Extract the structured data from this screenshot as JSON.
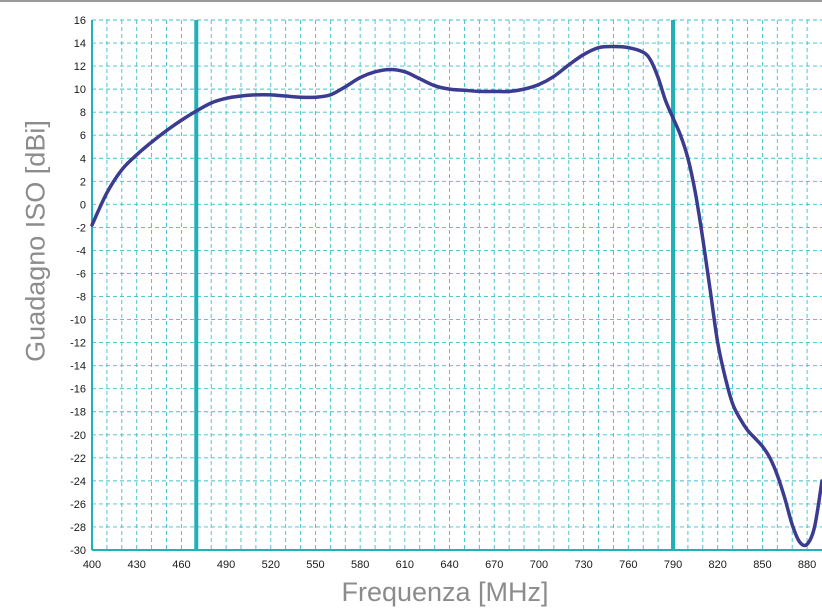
{
  "chart_data": {
    "type": "line",
    "xlabel": "Frequenza [MHz]",
    "ylabel": "Guadagno ISO [dBi]",
    "xlim": [
      400,
      880
    ],
    "x_axis_end": 890,
    "ylim": [
      -30,
      16
    ],
    "x_ticks": [
      400,
      430,
      460,
      490,
      520,
      550,
      580,
      610,
      640,
      670,
      700,
      730,
      760,
      790,
      820,
      850,
      880
    ],
    "x_minor_step": 10,
    "y_ticks": [
      16,
      14,
      12,
      10,
      8,
      6,
      4,
      2,
      0,
      -2,
      -4,
      -6,
      -8,
      -10,
      -12,
      -14,
      -16,
      -18,
      -20,
      -22,
      -24,
      -26,
      -28,
      -30
    ],
    "grid": true,
    "colors": {
      "line": "#3b3b8f",
      "grid": "#3cc0cc",
      "markers": "#20b0b5",
      "axes": "#1fb3b8"
    },
    "vertical_markers": [
      470,
      790
    ],
    "series": [
      {
        "x": [
          400,
          410,
          420,
          430,
          440,
          450,
          460,
          470,
          480,
          490,
          500,
          510,
          520,
          530,
          540,
          550,
          560,
          570,
          580,
          590,
          600,
          610,
          620,
          630,
          640,
          650,
          660,
          670,
          680,
          690,
          700,
          710,
          720,
          730,
          740,
          750,
          760,
          770,
          775,
          780,
          785,
          790,
          795,
          800,
          805,
          810,
          815,
          820,
          825,
          830,
          835,
          840,
          845,
          850,
          855,
          860,
          865,
          870,
          875,
          880,
          885,
          890
        ],
        "y": [
          -1.8,
          1.0,
          3.0,
          4.3,
          5.4,
          6.4,
          7.3,
          8.1,
          8.8,
          9.2,
          9.4,
          9.5,
          9.5,
          9.4,
          9.3,
          9.3,
          9.5,
          10.2,
          11.0,
          11.5,
          11.7,
          11.5,
          10.9,
          10.3,
          10.0,
          9.9,
          9.8,
          9.8,
          9.8,
          10.0,
          10.4,
          11.1,
          12.1,
          13.0,
          13.6,
          13.7,
          13.6,
          13.2,
          12.5,
          11.0,
          9.0,
          7.5,
          6.0,
          4.0,
          1.0,
          -3.0,
          -7.5,
          -12.0,
          -15.0,
          -17.3,
          -18.6,
          -19.6,
          -20.3,
          -21.0,
          -22.0,
          -23.5,
          -25.5,
          -27.8,
          -29.3,
          -29.5,
          -28.0,
          -24.0
        ]
      }
    ]
  }
}
